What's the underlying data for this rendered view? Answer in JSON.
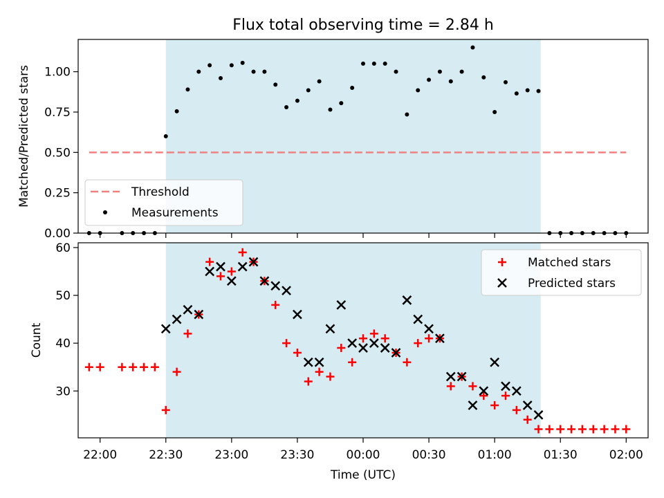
{
  "title": "Flux total observing time = 2.84 h",
  "colors": {
    "shade": "#add8e6",
    "threshold": "#f08080",
    "matched": "#ff0000",
    "predicted": "#000000",
    "measurement": "#000000"
  },
  "chart_data": [
    {
      "type": "scatter",
      "ylabel": "Matched/Predicted stars",
      "ylim": [
        0,
        1.2
      ],
      "yticks": [
        "0.00",
        "0.25",
        "0.50",
        "0.75",
        "1.00"
      ],
      "xlim": [
        "21:50",
        "02:10"
      ],
      "shaded_interval": [
        "22:30",
        "01:21"
      ],
      "legend": {
        "placement": "lower-left",
        "entries": [
          "Threshold",
          "Measurements"
        ]
      },
      "threshold": {
        "name": "Threshold",
        "value": 0.5,
        "x_range": [
          "21:55",
          "02:00"
        ]
      },
      "series": [
        {
          "name": "Measurements",
          "x": [
            "21:55",
            "22:00",
            "22:10",
            "22:15",
            "22:20",
            "22:25",
            "22:30",
            "22:35",
            "22:40",
            "22:45",
            "22:50",
            "22:55",
            "23:00",
            "23:05",
            "23:10",
            "23:15",
            "23:20",
            "23:25",
            "23:30",
            "23:35",
            "23:40",
            "23:45",
            "23:50",
            "23:55",
            "00:00",
            "00:05",
            "00:10",
            "00:15",
            "00:20",
            "00:25",
            "00:30",
            "00:35",
            "00:40",
            "00:45",
            "00:50",
            "00:55",
            "01:00",
            "01:05",
            "01:10",
            "01:15",
            "01:20",
            "01:25",
            "01:30",
            "01:35",
            "01:40",
            "01:45",
            "01:50",
            "01:55",
            "02:00"
          ],
          "values": [
            0.0,
            0.0,
            0.0,
            0.0,
            0.0,
            0.0,
            0.6,
            0.755,
            0.89,
            1.0,
            1.04,
            0.96,
            1.04,
            1.055,
            1.0,
            1.0,
            0.92,
            0.78,
            0.82,
            0.885,
            0.94,
            0.765,
            0.805,
            0.9,
            1.05,
            1.05,
            1.05,
            1.0,
            0.735,
            0.885,
            0.95,
            1.0,
            0.94,
            1.0,
            1.15,
            0.965,
            0.75,
            0.935,
            0.865,
            0.885,
            0.88,
            0.0,
            0.0,
            0.0,
            0.0,
            0.0,
            0.0,
            0.0,
            0.0
          ]
        }
      ]
    },
    {
      "type": "scatter",
      "xlabel": "Time (UTC)",
      "ylabel": "Count",
      "ylim": [
        20.2,
        61
      ],
      "yticks": [
        "30",
        "40",
        "50",
        "60"
      ],
      "xlim": [
        "21:50",
        "02:10"
      ],
      "xticks": [
        "22:00",
        "22:30",
        "23:00",
        "23:30",
        "00:00",
        "00:30",
        "01:00",
        "01:30",
        "02:00"
      ],
      "shaded_interval": [
        "22:30",
        "01:21"
      ],
      "legend": {
        "placement": "top-right",
        "entries": [
          "Matched stars",
          "Predicted stars"
        ]
      },
      "series": [
        {
          "name": "Matched stars",
          "x": [
            "21:55",
            "22:00",
            "22:10",
            "22:15",
            "22:20",
            "22:25",
            "22:30",
            "22:35",
            "22:40",
            "22:45",
            "22:50",
            "22:55",
            "23:00",
            "23:05",
            "23:10",
            "23:15",
            "23:20",
            "23:25",
            "23:30",
            "23:35",
            "23:40",
            "23:45",
            "23:50",
            "23:55",
            "00:00",
            "00:05",
            "00:10",
            "00:15",
            "00:20",
            "00:25",
            "00:30",
            "00:35",
            "00:40",
            "00:45",
            "00:50",
            "00:55",
            "01:00",
            "01:05",
            "01:10",
            "01:15",
            "01:20",
            "01:25",
            "01:30",
            "01:35",
            "01:40",
            "01:45",
            "01:50",
            "01:55",
            "02:00"
          ],
          "values": [
            35,
            35,
            35,
            35,
            35,
            35,
            26,
            34,
            42,
            46,
            57,
            54,
            55,
            59,
            57,
            53,
            48,
            40,
            38,
            32,
            34,
            33,
            39,
            36,
            41,
            42,
            41,
            38,
            36,
            40,
            41,
            41,
            31,
            33,
            31,
            29,
            27,
            29,
            26,
            24,
            22,
            22,
            22,
            22,
            22,
            22,
            22,
            22,
            22
          ]
        },
        {
          "name": "Predicted stars",
          "x": [
            "22:30",
            "22:35",
            "22:40",
            "22:45",
            "22:50",
            "22:55",
            "23:00",
            "23:05",
            "23:10",
            "23:15",
            "23:20",
            "23:25",
            "23:30",
            "23:35",
            "23:40",
            "23:45",
            "23:50",
            "23:55",
            "00:00",
            "00:05",
            "00:10",
            "00:15",
            "00:20",
            "00:25",
            "00:30",
            "00:35",
            "00:40",
            "00:45",
            "00:50",
            "00:55",
            "01:00",
            "01:05",
            "01:10",
            "01:15",
            "01:20"
          ],
          "values": [
            43,
            45,
            47,
            46,
            55,
            56,
            53,
            56,
            57,
            53,
            52,
            51,
            46,
            36,
            36,
            43,
            48,
            40,
            39,
            40,
            39,
            38,
            49,
            45,
            43,
            41,
            33,
            33,
            27,
            30,
            36,
            31,
            30,
            27,
            25
          ]
        }
      ]
    }
  ]
}
